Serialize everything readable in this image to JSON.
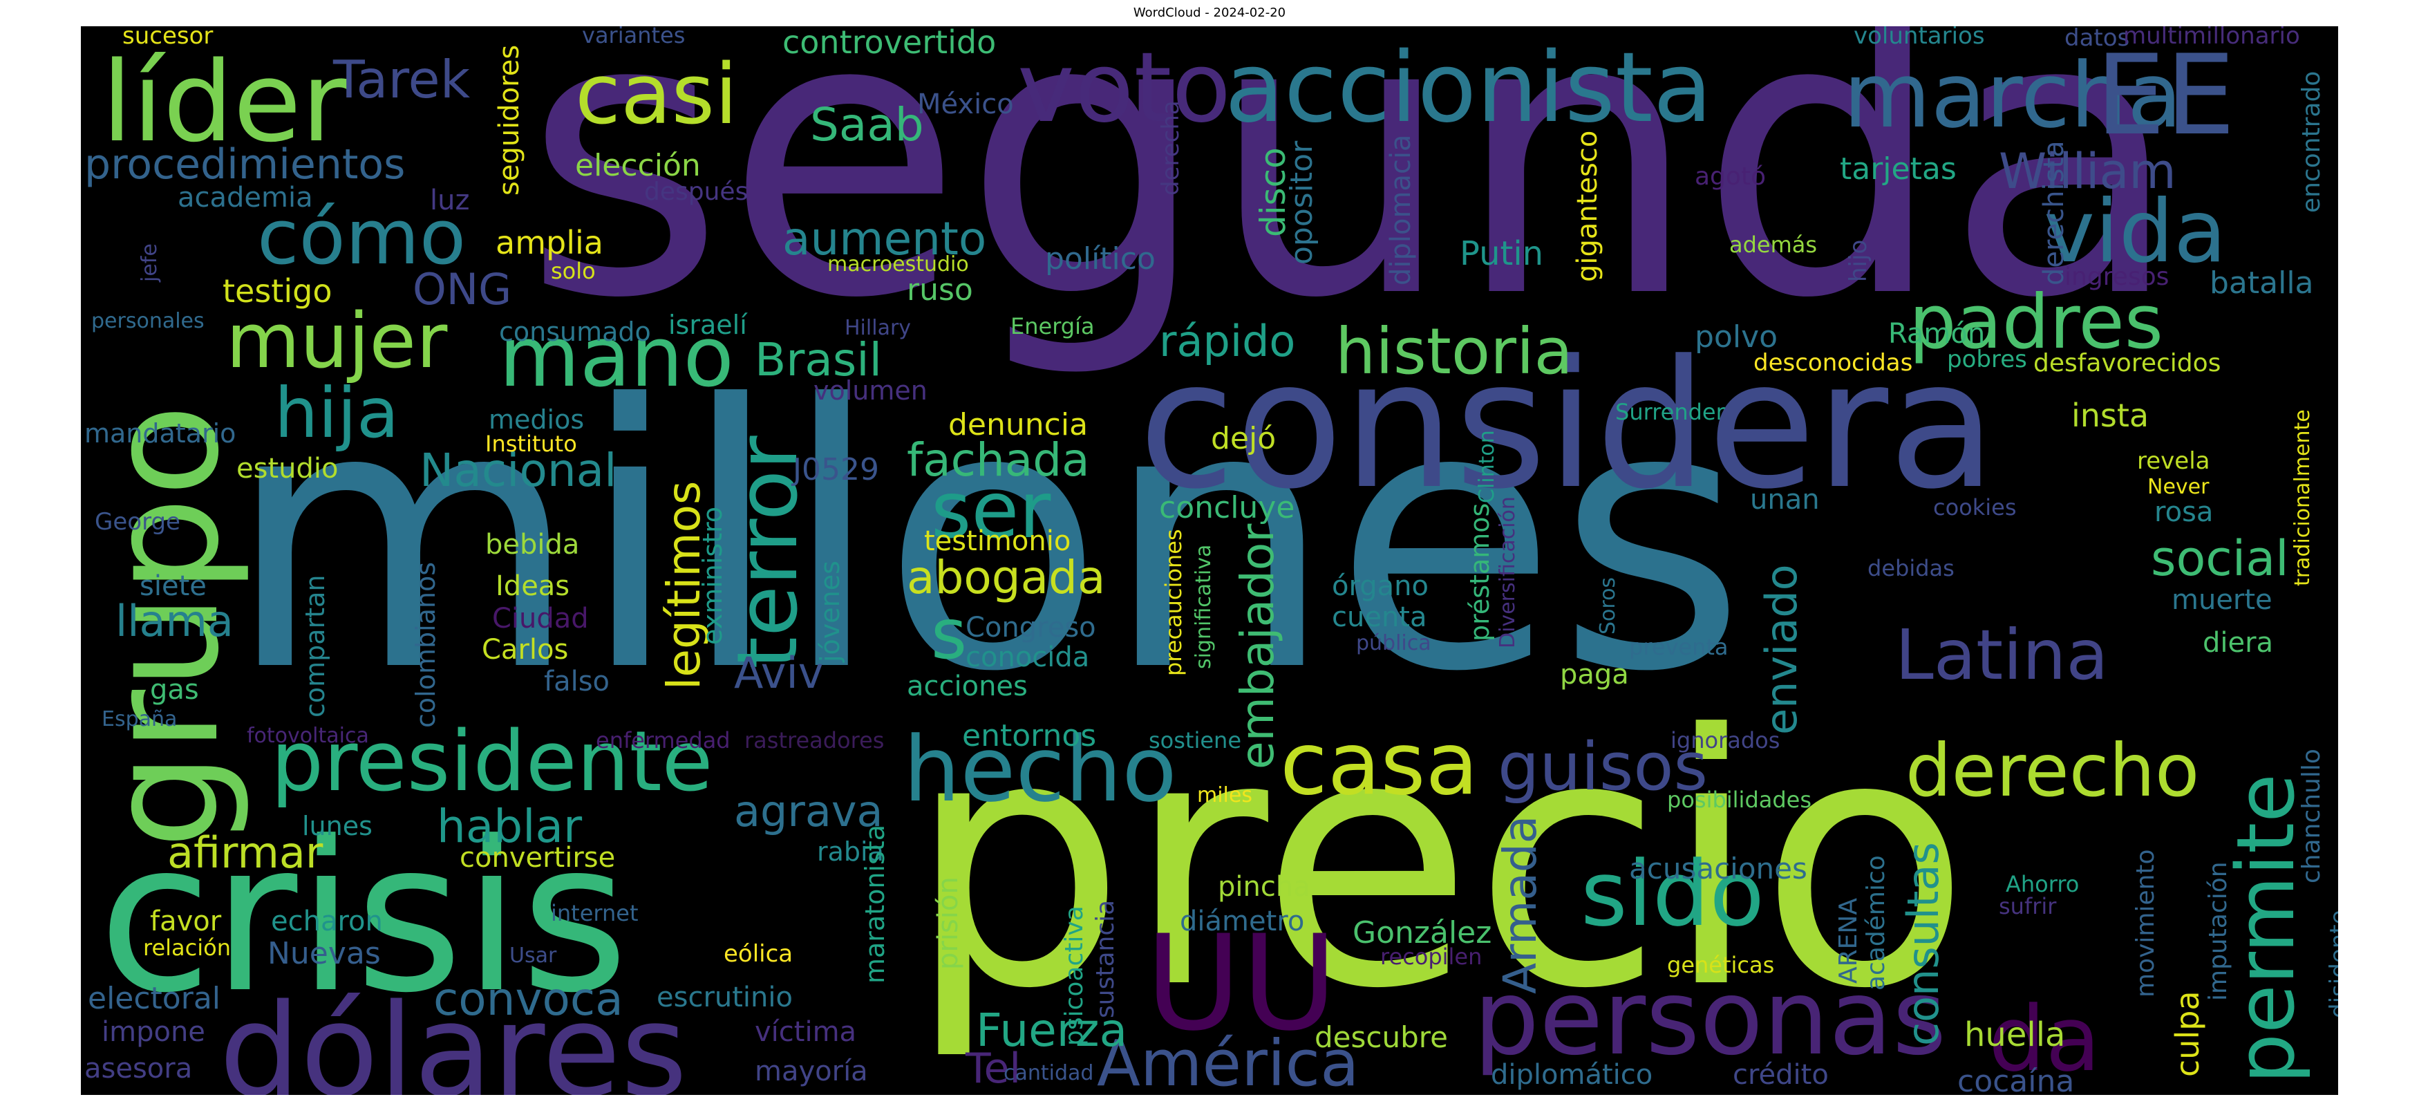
{
  "title": "WordCloud - 2024-02-20",
  "colors": {
    "background": "#000000",
    "palette": [
      "#440154",
      "#472d7b",
      "#3b528b",
      "#2c728e",
      "#21918c",
      "#28ae80",
      "#5ec962",
      "#addc30",
      "#fde725"
    ]
  },
  "words": [
    {
      "text": "segunda",
      "color": "#482878",
      "v": false
    },
    {
      "text": "millones",
      "color": "#2c728e",
      "v": false
    },
    {
      "text": "precio",
      "color": "#a5db36",
      "v": false
    },
    {
      "text": "crisis",
      "color": "#35b779",
      "v": false
    },
    {
      "text": "considera",
      "color": "#3e4a89",
      "v": false
    },
    {
      "text": "grupo",
      "color": "#6ece58",
      "v": true
    },
    {
      "text": "dólares",
      "color": "#46327e",
      "v": false
    },
    {
      "text": "accionista",
      "color": "#2a788e",
      "v": false
    },
    {
      "text": "voto",
      "color": "#472a7a",
      "v": false
    },
    {
      "text": "marcha",
      "color": "#31688e",
      "v": false
    },
    {
      "text": "EE",
      "color": "#3b528b",
      "v": false
    },
    {
      "text": "líder",
      "color": "#7ad151",
      "v": false
    },
    {
      "text": "casi",
      "color": "#b5de2b",
      "v": false
    },
    {
      "text": "UU",
      "color": "#440154",
      "v": false
    },
    {
      "text": "personas",
      "color": "#482475",
      "v": false
    },
    {
      "text": "presidente",
      "color": "#29af7f",
      "v": false
    },
    {
      "text": "hecho",
      "color": "#26828e",
      "v": false
    },
    {
      "text": "casa",
      "color": "#c2df23",
      "v": false
    },
    {
      "text": "guisos",
      "color": "#3e4989",
      "v": false
    },
    {
      "text": "derecho",
      "color": "#addc30",
      "v": false
    },
    {
      "text": "sido",
      "color": "#21a685",
      "v": false
    },
    {
      "text": "permite",
      "color": "#22a884",
      "v": true
    },
    {
      "text": "América",
      "color": "#3b528b",
      "v": false
    },
    {
      "text": "da",
      "color": "#440154",
      "v": false
    },
    {
      "text": "mujer",
      "color": "#84d44b",
      "v": false
    },
    {
      "text": "mano",
      "color": "#38b977",
      "v": false
    },
    {
      "text": "hija",
      "color": "#20928c",
      "v": false
    },
    {
      "text": "terror",
      "color": "#1f9e89",
      "v": true
    },
    {
      "text": "historia",
      "color": "#5ec962",
      "v": false
    },
    {
      "text": "padres",
      "color": "#4ac16d",
      "v": false
    },
    {
      "text": "vida",
      "color": "#2c728e",
      "v": false
    },
    {
      "text": "cómo",
      "color": "#277f8e",
      "v": false
    },
    {
      "text": "ser",
      "color": "#1e9c89",
      "v": false
    },
    {
      "text": "s",
      "color": "#29af7f",
      "v": false
    },
    {
      "text": "Latina",
      "color": "#414487",
      "v": false
    },
    {
      "text": "abogada",
      "color": "#c8e020",
      "v": false
    },
    {
      "text": "legítimos",
      "color": "#d8e219",
      "v": true
    },
    {
      "text": "Tarek",
      "color": "#3e4a89",
      "v": false
    },
    {
      "text": "Saab",
      "color": "#35b779",
      "v": false
    },
    {
      "text": "procedimientos",
      "color": "#33638d",
      "v": false
    },
    {
      "text": "William",
      "color": "#3e4c8a",
      "v": false
    },
    {
      "text": "aumento",
      "color": "#25858e",
      "v": false
    },
    {
      "text": "Brasil",
      "color": "#2db27d",
      "v": false
    },
    {
      "text": "rápido",
      "color": "#1fa088",
      "v": false
    },
    {
      "text": "Nacional",
      "color": "#238a8d",
      "v": false
    },
    {
      "text": "fachada",
      "color": "#37b878",
      "v": false
    },
    {
      "text": "embajador",
      "color": "#3fbc73",
      "v": true
    },
    {
      "text": "social",
      "color": "#3ebc74",
      "v": false
    },
    {
      "text": "enviado",
      "color": "#23888e",
      "v": true
    },
    {
      "text": "llama",
      "color": "#26818e",
      "v": false
    },
    {
      "text": "Aviv",
      "color": "#3b518b",
      "v": false
    },
    {
      "text": "agrava",
      "color": "#2d708e",
      "v": false
    },
    {
      "text": "hablar",
      "color": "#1f988b",
      "v": false
    },
    {
      "text": "afirmar",
      "color": "#bddf26",
      "v": false
    },
    {
      "text": "convoca",
      "color": "#2f6b8e",
      "v": false
    },
    {
      "text": "Fuerza",
      "color": "#22a785",
      "v": false
    },
    {
      "text": "Armada",
      "color": "#355f8d",
      "v": true
    },
    {
      "text": "consultas",
      "color": "#21918c",
      "v": true
    },
    {
      "text": "huella",
      "color": "#a8db34",
      "v": false
    },
    {
      "text": "cocaína",
      "color": "#3a538b",
      "v": false
    },
    {
      "text": "culpa",
      "color": "#dde318",
      "v": true
    },
    {
      "text": "ONG",
      "color": "#3e4989",
      "v": false
    },
    {
      "text": "testigo",
      "color": "#d2e21b",
      "v": false
    },
    {
      "text": "amplia",
      "color": "#e5e419",
      "v": false
    },
    {
      "text": "elección",
      "color": "#8bd646",
      "v": false
    },
    {
      "text": "controvertido",
      "color": "#3dbc74",
      "v": false
    },
    {
      "text": "México",
      "color": "#3b528b",
      "v": false
    },
    {
      "text": "seguidores",
      "color": "#e2e418",
      "v": true
    },
    {
      "text": "academia",
      "color": "#2c718e",
      "v": false
    },
    {
      "text": "luz",
      "color": "#443983",
      "v": false
    },
    {
      "text": "después",
      "color": "#453581",
      "v": false
    },
    {
      "text": "macroestudio",
      "color": "#b8de29",
      "v": false
    },
    {
      "text": "solo",
      "color": "#d5e21a",
      "v": false
    },
    {
      "text": "político",
      "color": "#30698e",
      "v": false
    },
    {
      "text": "ruso",
      "color": "#56c667",
      "v": false
    },
    {
      "text": "disco",
      "color": "#3bbb75",
      "v": true
    },
    {
      "text": "opositor",
      "color": "#2c738e",
      "v": true
    },
    {
      "text": "diplomacia",
      "color": "#3b528b",
      "v": true
    },
    {
      "text": "Putin",
      "color": "#1f958b",
      "v": false
    },
    {
      "text": "gigantesco",
      "color": "#e7e419",
      "v": true
    },
    {
      "text": "tarjetas",
      "color": "#22a785",
      "v": false
    },
    {
      "text": "derechista",
      "color": "#39558c",
      "v": true
    },
    {
      "text": "agotó",
      "color": "#482173",
      "v": false
    },
    {
      "text": "además",
      "color": "#95d840",
      "v": false
    },
    {
      "text": "hijo",
      "color": "#3f4788",
      "v": true
    },
    {
      "text": "ingresos",
      "color": "#482173",
      "v": false
    },
    {
      "text": "batalla",
      "color": "#2b758e",
      "v": false
    },
    {
      "text": "sucesor",
      "color": "#e5e419",
      "v": false
    },
    {
      "text": "variantes",
      "color": "#3b528b",
      "v": false
    },
    {
      "text": "voluntarios",
      "color": "#24868e",
      "v": false
    },
    {
      "text": "datos",
      "color": "#3d4e8a",
      "v": false
    },
    {
      "text": "multimillonario",
      "color": "#472c7a",
      "v": false
    },
    {
      "text": "encontrado",
      "color": "#2b758e",
      "v": true
    },
    {
      "text": "derecha",
      "color": "#453781",
      "v": true
    },
    {
      "text": "jefe",
      "color": "#414487",
      "v": true
    },
    {
      "text": "personales",
      "color": "#306a8e",
      "v": false
    },
    {
      "text": "consumado",
      "color": "#2a788e",
      "v": false
    },
    {
      "text": "israelí",
      "color": "#1f9e89",
      "v": false
    },
    {
      "text": "Hillary",
      "color": "#404688",
      "v": false
    },
    {
      "text": "Energía",
      "color": "#5cc863",
      "v": false
    },
    {
      "text": "polvo",
      "color": "#2c738e",
      "v": false
    },
    {
      "text": "Ramón",
      "color": "#38b977",
      "v": false
    },
    {
      "text": "desconocidas",
      "color": "#fde725",
      "v": false
    },
    {
      "text": "pobres",
      "color": "#27ad81",
      "v": false
    },
    {
      "text": "desfavorecidos",
      "color": "#bade28",
      "v": false
    },
    {
      "text": "mandatario",
      "color": "#31688e",
      "v": false
    },
    {
      "text": "medios",
      "color": "#26828e",
      "v": false
    },
    {
      "text": "Instituto",
      "color": "#fde725",
      "v": false
    },
    {
      "text": "estudio",
      "color": "#b2dd2d",
      "v": false
    },
    {
      "text": "volumen",
      "color": "#46307e",
      "v": false
    },
    {
      "text": "denuncia",
      "color": "#dde318",
      "v": false
    },
    {
      "text": "J0529",
      "color": "#3a548c",
      "v": false
    },
    {
      "text": "dejó",
      "color": "#c0df25",
      "v": false
    },
    {
      "text": "concluye",
      "color": "#3aba76",
      "v": false
    },
    {
      "text": "Surrender",
      "color": "#20a386",
      "v": false
    },
    {
      "text": "Clinton",
      "color": "#1fa088",
      "v": true
    },
    {
      "text": "Diversificación",
      "color": "#46307e",
      "v": true
    },
    {
      "text": "insta",
      "color": "#b2dd2d",
      "v": false
    },
    {
      "text": "revela",
      "color": "#c0df25",
      "v": false
    },
    {
      "text": "Never",
      "color": "#ece51b",
      "v": false
    },
    {
      "text": "tradicionalmente",
      "color": "#e5e419",
      "v": true
    },
    {
      "text": "George",
      "color": "#3a548c",
      "v": false
    },
    {
      "text": "bebida",
      "color": "#9dd93b",
      "v": false
    },
    {
      "text": "exministro",
      "color": "#1e9b8a",
      "v": true
    },
    {
      "text": "testimonio",
      "color": "#dde318",
      "v": false
    },
    {
      "text": "unan",
      "color": "#2a788e",
      "v": false
    },
    {
      "text": "cookies",
      "color": "#3e4a89",
      "v": false
    },
    {
      "text": "rosa",
      "color": "#25858e",
      "v": false
    },
    {
      "text": "siete",
      "color": "#2e6f8e",
      "v": false
    },
    {
      "text": "Ideas",
      "color": "#b5de2b",
      "v": false
    },
    {
      "text": "Ciudad",
      "color": "#481769",
      "v": false
    },
    {
      "text": "Carlos",
      "color": "#c5e021",
      "v": false
    },
    {
      "text": "falso",
      "color": "#33638d",
      "v": false
    },
    {
      "text": "compartan",
      "color": "#25848e",
      "v": true
    },
    {
      "text": "colombianos",
      "color": "#31678e",
      "v": true
    },
    {
      "text": "jóvenes",
      "color": "#20928c",
      "v": true
    },
    {
      "text": "Congreso",
      "color": "#2f6c8e",
      "v": false
    },
    {
      "text": "conocida",
      "color": "#21918c",
      "v": false
    },
    {
      "text": "acciones",
      "color": "#29af7f",
      "v": false
    },
    {
      "text": "precauciones",
      "color": "#e7e419",
      "v": true
    },
    {
      "text": "significativa",
      "color": "#52c569",
      "v": true
    },
    {
      "text": "órgano",
      "color": "#24868e",
      "v": false
    },
    {
      "text": "cuenta",
      "color": "#24878e",
      "v": false
    },
    {
      "text": "pública",
      "color": "#3f4889",
      "v": false
    },
    {
      "text": "préstamos",
      "color": "#35b779",
      "v": true
    },
    {
      "text": "paga",
      "color": "#90d743",
      "v": false
    },
    {
      "text": "Soros",
      "color": "#2b758e",
      "v": true
    },
    {
      "text": "preventa",
      "color": "#2f6c8e",
      "v": false
    },
    {
      "text": "debidas",
      "color": "#3d4d8a",
      "v": false
    },
    {
      "text": "muerte",
      "color": "#2a768e",
      "v": false
    },
    {
      "text": "diera",
      "color": "#4cc26c",
      "v": false
    },
    {
      "text": "gas",
      "color": "#3fbc73",
      "v": false
    },
    {
      "text": "España",
      "color": "#33638d",
      "v": false
    },
    {
      "text": "fotovoltaica",
      "color": "#482677",
      "v": false
    },
    {
      "text": "enfermedad",
      "color": "#481f70",
      "v": false
    },
    {
      "text": "rastreadores",
      "color": "#3b1c5a",
      "v": false
    },
    {
      "text": "entornos",
      "color": "#1fa187",
      "v": false
    },
    {
      "text": "sostiene",
      "color": "#21908d",
      "v": false
    },
    {
      "text": "ignorados",
      "color": "#414487",
      "v": false
    },
    {
      "text": "chanchullo",
      "color": "#31688e",
      "v": true
    },
    {
      "text": "posibilidades",
      "color": "#5ec962",
      "v": false
    },
    {
      "text": "lunes",
      "color": "#21918c",
      "v": false
    },
    {
      "text": "convertirse",
      "color": "#c2df23",
      "v": false
    },
    {
      "text": "rabia",
      "color": "#23898e",
      "v": false
    },
    {
      "text": "miles",
      "color": "#f1e51d",
      "v": false
    },
    {
      "text": "maratonista",
      "color": "#20a486",
      "v": true
    },
    {
      "text": "psicoactiva",
      "color": "#20a486",
      "v": true
    },
    {
      "text": "sustancia",
      "color": "#3e4989",
      "v": true
    },
    {
      "text": "prisión",
      "color": "#86d549",
      "v": true
    },
    {
      "text": "pincha",
      "color": "#a2da37",
      "v": false
    },
    {
      "text": "diámetro",
      "color": "#2f6b8e",
      "v": false
    },
    {
      "text": "acusaciones",
      "color": "#2e6e8e",
      "v": false
    },
    {
      "text": "ARENA",
      "color": "#31678e",
      "v": true
    },
    {
      "text": "académico",
      "color": "#2c718e",
      "v": true
    },
    {
      "text": "movimiento",
      "color": "#33638d",
      "v": true
    },
    {
      "text": "imputación",
      "color": "#31688e",
      "v": true
    },
    {
      "text": "disidente",
      "color": "#2e6e8e",
      "v": true
    },
    {
      "text": "Ahorro",
      "color": "#20a386",
      "v": false
    },
    {
      "text": "sufrir",
      "color": "#46337f",
      "v": false
    },
    {
      "text": "favor",
      "color": "#c5e021",
      "v": false
    },
    {
      "text": "echaron",
      "color": "#20938c",
      "v": false
    },
    {
      "text": "internet",
      "color": "#33638d",
      "v": false
    },
    {
      "text": "relación",
      "color": "#e2e418",
      "v": false
    },
    {
      "text": "Nuevas",
      "color": "#355e8d",
      "v": false
    },
    {
      "text": "Usar",
      "color": "#3d4d8a",
      "v": false
    },
    {
      "text": "eólica",
      "color": "#fde725",
      "v": false
    },
    {
      "text": "González",
      "color": "#4ac16d",
      "v": false
    },
    {
      "text": "recopilen",
      "color": "#481f70",
      "v": false
    },
    {
      "text": "genéticas",
      "color": "#d8e219",
      "v": false
    },
    {
      "text": "electoral",
      "color": "#33638d",
      "v": false
    },
    {
      "text": "escrutinio",
      "color": "#2a788e",
      "v": false
    },
    {
      "text": "impone",
      "color": "#433e85",
      "v": false
    },
    {
      "text": "víctima",
      "color": "#46307e",
      "v": false
    },
    {
      "text": "asesora",
      "color": "#433e85",
      "v": false
    },
    {
      "text": "mayoría",
      "color": "#414487",
      "v": false
    },
    {
      "text": "Tel",
      "color": "#482677",
      "v": false
    },
    {
      "text": "cantidad",
      "color": "#3a548c",
      "v": false
    },
    {
      "text": "descubre",
      "color": "#a0da39",
      "v": false
    },
    {
      "text": "diplomático",
      "color": "#2f6c8e",
      "v": false
    },
    {
      "text": "crédito",
      "color": "#3f4788",
      "v": false
    }
  ]
}
